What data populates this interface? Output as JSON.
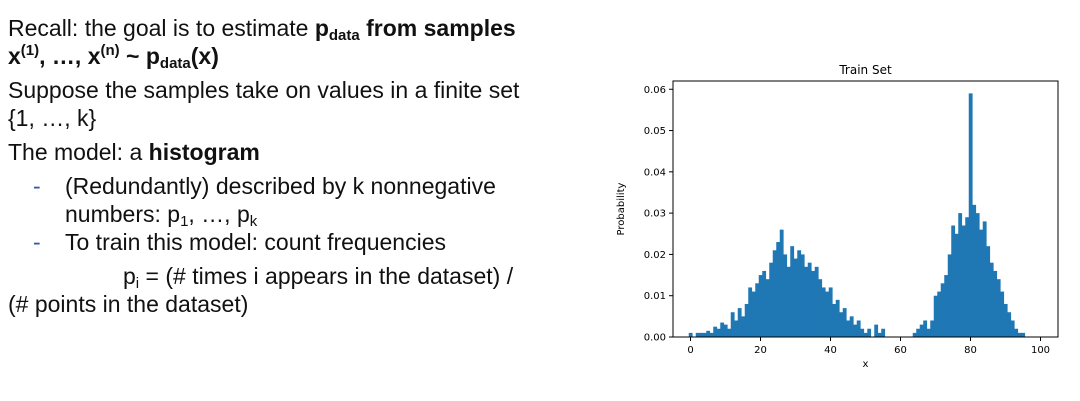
{
  "slide": {
    "l1_a": "Recall: the goal is to estimate ",
    "l1_p": "p",
    "l1_sub": "data",
    "l1_b": " from samples",
    "l2_x1": "x",
    "l2_sup1": "(1)",
    "l2_mid": ", …, x",
    "l2_supn": "(n)",
    "l2_tilde": " ~ p",
    "l2_sub": "data",
    "l2_end": "(x)",
    "l3": "Suppose the samples take on values in a finite set",
    "l4": "{1, …, k}",
    "l5_a": "The model: a ",
    "l5_b": "histogram",
    "bullet_dash_1": "-",
    "bullet_dash_2": "-",
    "b1_l1": "(Redundantly) described by k nonnegative",
    "b1_l2_a": "numbers: p",
    "b1_sub1": "1",
    "b1_l2_b": ", …, p",
    "b1_subk": "k",
    "b2": "To train this model: count frequencies",
    "f_p": "p",
    "f_sub": "i",
    "f_rest": " = (# times i appears in the dataset) /",
    "f_l2": "(# points in the dataset)"
  },
  "chart_data": {
    "type": "bar",
    "title": "Train Set",
    "xlabel": "x",
    "ylabel": "Probability",
    "xlim": [
      -5,
      105
    ],
    "ylim": [
      0,
      0.062
    ],
    "xticks": [
      0,
      20,
      40,
      60,
      80,
      100
    ],
    "yticks": [
      0.0,
      0.01,
      0.02,
      0.03,
      0.04,
      0.05,
      0.06
    ],
    "ytick_labels": [
      "0.00",
      "0.01",
      "0.02",
      "0.03",
      "0.04",
      "0.05",
      "0.06"
    ],
    "bar_color": "#1f77b4",
    "grid": false,
    "x": [
      0,
      1,
      2,
      3,
      4,
      5,
      6,
      7,
      8,
      9,
      10,
      11,
      12,
      13,
      14,
      15,
      16,
      17,
      18,
      19,
      20,
      21,
      22,
      23,
      24,
      25,
      26,
      27,
      28,
      29,
      30,
      31,
      32,
      33,
      34,
      35,
      36,
      37,
      38,
      39,
      40,
      41,
      42,
      43,
      44,
      45,
      46,
      47,
      48,
      49,
      50,
      51,
      52,
      53,
      54,
      55,
      56,
      57,
      58,
      59,
      60,
      61,
      62,
      63,
      64,
      65,
      66,
      67,
      68,
      69,
      70,
      71,
      72,
      73,
      74,
      75,
      76,
      77,
      78,
      79,
      80,
      81,
      82,
      83,
      84,
      85,
      86,
      87,
      88,
      89,
      90,
      91,
      92,
      93,
      94,
      95,
      96,
      97,
      98,
      99
    ],
    "values": [
      0.001,
      0.0,
      0.001,
      0.001,
      0.001,
      0.0015,
      0.001,
      0.0025,
      0.002,
      0.0035,
      0.003,
      0.002,
      0.006,
      0.004,
      0.007,
      0.005,
      0.008,
      0.012,
      0.011,
      0.013,
      0.015,
      0.016,
      0.014,
      0.018,
      0.021,
      0.023,
      0.026,
      0.02,
      0.017,
      0.022,
      0.019,
      0.021,
      0.02,
      0.017,
      0.018,
      0.016,
      0.017,
      0.014,
      0.012,
      0.011,
      0.012,
      0.008,
      0.009,
      0.006,
      0.007,
      0.004,
      0.005,
      0.003,
      0.004,
      0.002,
      0.001,
      0.002,
      0.0,
      0.003,
      0.001,
      0.002,
      0.0,
      0.0,
      0.0,
      0.0,
      0.0,
      0.0,
      0.0,
      0.0,
      0.001,
      0.002,
      0.003,
      0.004,
      0.002,
      0.004,
      0.01,
      0.011,
      0.013,
      0.015,
      0.02,
      0.027,
      0.025,
      0.03,
      0.027,
      0.029,
      0.059,
      0.032,
      0.03,
      0.026,
      0.028,
      0.022,
      0.018,
      0.016,
      0.014,
      0.011,
      0.008,
      0.006,
      0.004,
      0.002,
      0.001,
      0.001,
      0.0,
      0.0,
      0.0,
      0.0
    ]
  }
}
